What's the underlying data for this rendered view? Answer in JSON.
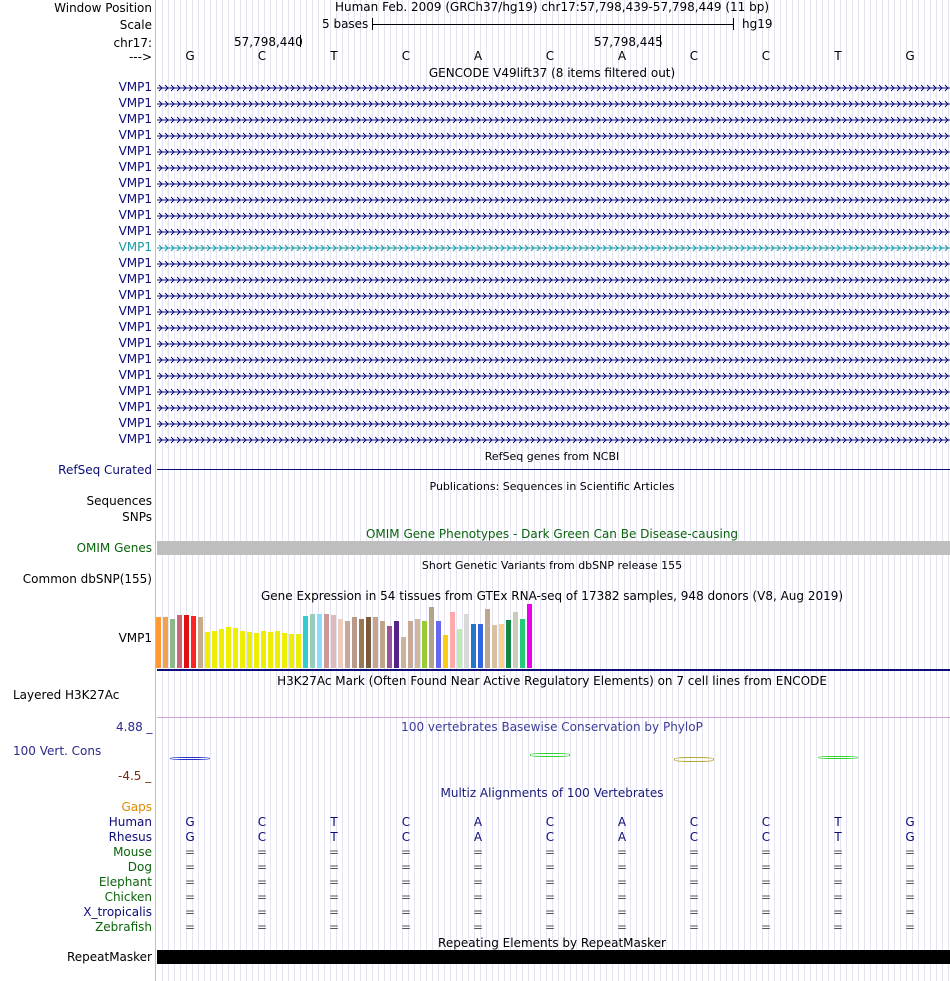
{
  "header": {
    "window_position_label": "Window Position",
    "scale_label": "Scale",
    "chrom_label": "chr17:",
    "strand_label": "--->",
    "assembly_text": "Human Feb. 2009 (GRCh37/hg19)   chr17:57,798,439-57,798,449 (11 bp)",
    "scale_text": "5 bases",
    "db_label": "hg19",
    "pos1": "57,798,440",
    "pos2": "57,798,445"
  },
  "sequence": [
    "G",
    "C",
    "T",
    "C",
    "A",
    "C",
    "A",
    "C",
    "C",
    "T",
    "G"
  ],
  "gencode": {
    "title": "GENCODE V49lift37 (8 items filtered out)",
    "rows": [
      "VMP1",
      "VMP1",
      "VMP1",
      "VMP1",
      "VMP1",
      "VMP1",
      "VMP1",
      "VMP1",
      "VMP1",
      "VMP1",
      "VMP1",
      "VMP1",
      "VMP1",
      "VMP1",
      "VMP1",
      "VMP1",
      "VMP1",
      "VMP1",
      "VMP1",
      "VMP1",
      "VMP1",
      "VMP1",
      "VMP1"
    ],
    "highlight_index": 10,
    "color": "#0c0c78",
    "highlight_color": "#1a9aa6"
  },
  "refseq": {
    "label": "RefSeq Curated",
    "title": "RefSeq genes from NCBI",
    "color": "#0c0c78"
  },
  "publications": {
    "title": "Publications: Sequences in Scientific Articles",
    "seq_label": "Sequences",
    "snp_label": "SNPs"
  },
  "omim": {
    "label": "OMIM Genes",
    "title": "OMIM Gene Phenotypes - Dark Green Can Be Disease-causing",
    "color": "#0a640a"
  },
  "dbsnp": {
    "label": "Common dbSNP(155)",
    "title": "Short Genetic Variants from dbSNP release 155"
  },
  "gtex": {
    "title": "Gene Expression in 54 tissues from GTEx RNA-seq of 17382 samples, 948 donors (V8, Aug 2019)",
    "label": "VMP1",
    "values": [
      0.8,
      0.8,
      0.77,
      0.83,
      0.83,
      0.82,
      0.8,
      0.56,
      0.58,
      0.61,
      0.64,
      0.62,
      0.58,
      0.57,
      0.54,
      0.58,
      0.56,
      0.58,
      0.55,
      0.53,
      0.53,
      0.82,
      0.85,
      0.85,
      0.84,
      0.83,
      0.77,
      0.74,
      0.8,
      0.77,
      0.8,
      0.8,
      0.73,
      0.66,
      0.73,
      0.48,
      0.73,
      0.77,
      0.73,
      0.95,
      0.73,
      0.52,
      0.88,
      0.61,
      0.85,
      0.69,
      0.68,
      0.92,
      0.67,
      0.69,
      0.75,
      0.88,
      0.77,
      1.0
    ],
    "colors": [
      "#ff9933",
      "#f2a24c",
      "#8fb88a",
      "#cc6677",
      "#dd1111",
      "#ff2222",
      "#c8ab88",
      "#eeee00",
      "#eeee00",
      "#eeee00",
      "#eeee00",
      "#eeee00",
      "#eeee00",
      "#eeee00",
      "#eeee00",
      "#eeee00",
      "#eeee00",
      "#eeee00",
      "#eeee00",
      "#eeee00",
      "#eeee00",
      "#33cccc",
      "#99ccbb",
      "#88ddff",
      "#cc9999",
      "#ddbbbb",
      "#eeccbb",
      "#c7a89a",
      "#bb9988",
      "#997755",
      "#7a5c3c",
      "#c6a589",
      "#bca58c",
      "#995599",
      "#552288",
      "#c9b49a",
      "#c8a897",
      "#d0b8a0",
      "#99cc33",
      "#b2a488",
      "#6666ee",
      "#ffcc11",
      "#ffaaaa",
      "#bbeeaa",
      "#d9d9d9",
      "#2277cc",
      "#3366dd",
      "#c0a690",
      "#d8c0a0",
      "#ffd08a",
      "#118844",
      "#ccccbb",
      "#22cc77",
      "#ee00ee"
    ]
  },
  "h3k27ac": {
    "label": "Layered H3K27Ac",
    "title": "H3K27Ac Mark (Often Found Near Active Regulatory Elements) on 7 cell lines from ENCODE"
  },
  "phylop": {
    "label": "100 Vert. Cons",
    "title": "100 vertebrates Basewise Conservation by PhyloP",
    "max": "4.88 _",
    "min": "-4.5 _",
    "values": [
      -0.1,
      0,
      0,
      0,
      0,
      0.3,
      0,
      -0.4,
      0,
      0.1,
      0
    ]
  },
  "multiz": {
    "title": "Multiz Alignments of 100 Vertebrates",
    "gaps_label": "Gaps",
    "species": [
      {
        "name": "Human",
        "bases": [
          "G",
          "C",
          "T",
          "C",
          "A",
          "C",
          "A",
          "C",
          "C",
          "T",
          "G"
        ]
      },
      {
        "name": "Rhesus",
        "bases": [
          "G",
          "C",
          "T",
          "C",
          "A",
          "C",
          "A",
          "C",
          "C",
          "T",
          "G"
        ]
      },
      {
        "name": "Mouse",
        "bases": [
          "=",
          "=",
          "=",
          "=",
          "=",
          "=",
          "=",
          "=",
          "=",
          "=",
          "="
        ]
      },
      {
        "name": "Dog",
        "bases": [
          "=",
          "=",
          "=",
          "=",
          "=",
          "=",
          "=",
          "=",
          "=",
          "=",
          "="
        ]
      },
      {
        "name": "Elephant",
        "bases": [
          "=",
          "=",
          "=",
          "=",
          "=",
          "=",
          "=",
          "=",
          "=",
          "=",
          "="
        ]
      },
      {
        "name": "Chicken",
        "bases": [
          "=",
          "=",
          "=",
          "=",
          "=",
          "=",
          "=",
          "=",
          "=",
          "=",
          "="
        ]
      },
      {
        "name": "X_tropicalis",
        "bases": [
          "=",
          "=",
          "=",
          "=",
          "=",
          "=",
          "=",
          "=",
          "=",
          "=",
          "="
        ]
      },
      {
        "name": "Zebrafish",
        "bases": [
          "=",
          "=",
          "=",
          "=",
          "=",
          "=",
          "=",
          "=",
          "=",
          "=",
          "="
        ]
      }
    ]
  },
  "repeatmasker": {
    "label": "RepeatMasker",
    "title": "Repeating Elements by RepeatMasker"
  }
}
